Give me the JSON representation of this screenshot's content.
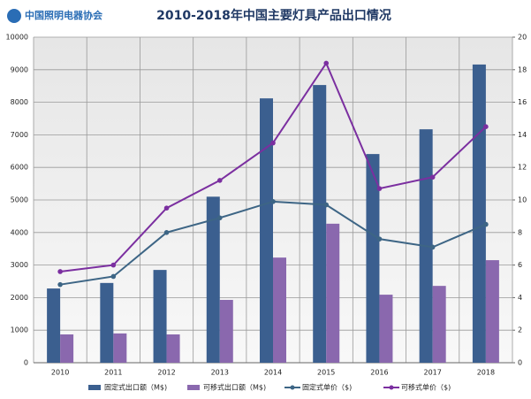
{
  "chart_data": {
    "type": "bar-line",
    "logo": "中国照明电器协会",
    "title": "2010-2018年中国主要灯具产品出口情况",
    "categories": [
      "2010",
      "2011",
      "2012",
      "2013",
      "2014",
      "2015",
      "2016",
      "2017",
      "2018"
    ],
    "series": [
      {
        "name": "固定式出口额（M$)",
        "type": "bar",
        "color": "#3b5f8f",
        "values": [
          2280,
          2450,
          2850,
          5100,
          8120,
          8530,
          6410,
          7170,
          9160
        ]
      },
      {
        "name": "可移式出口额（M$)",
        "type": "bar",
        "color": "#8a68ae",
        "values": [
          870,
          900,
          870,
          1930,
          3230,
          4270,
          2090,
          2360,
          3150
        ]
      },
      {
        "name": "固定式单价（$)",
        "type": "line",
        "axis": "y2",
        "color": "#3d6585",
        "values": [
          4.8,
          5.3,
          8.0,
          8.9,
          9.9,
          9.7,
          7.6,
          7.1,
          8.5
        ]
      },
      {
        "name": "可移式单价（$)",
        "type": "line",
        "axis": "y2",
        "color": "#7b2fa0",
        "values": [
          5.6,
          6.0,
          9.5,
          11.2,
          13.5,
          18.4,
          10.7,
          11.4,
          14.5
        ]
      }
    ],
    "ylim": [
      0,
      10000
    ],
    "yticks": [
      0,
      1000,
      2000,
      3000,
      4000,
      5000,
      6000,
      7000,
      8000,
      9000,
      10000
    ],
    "y2lim": [
      0,
      20
    ],
    "y2ticks": [
      0,
      2,
      4,
      6,
      8,
      10,
      12,
      14,
      16,
      18,
      20
    ],
    "grid": true
  }
}
